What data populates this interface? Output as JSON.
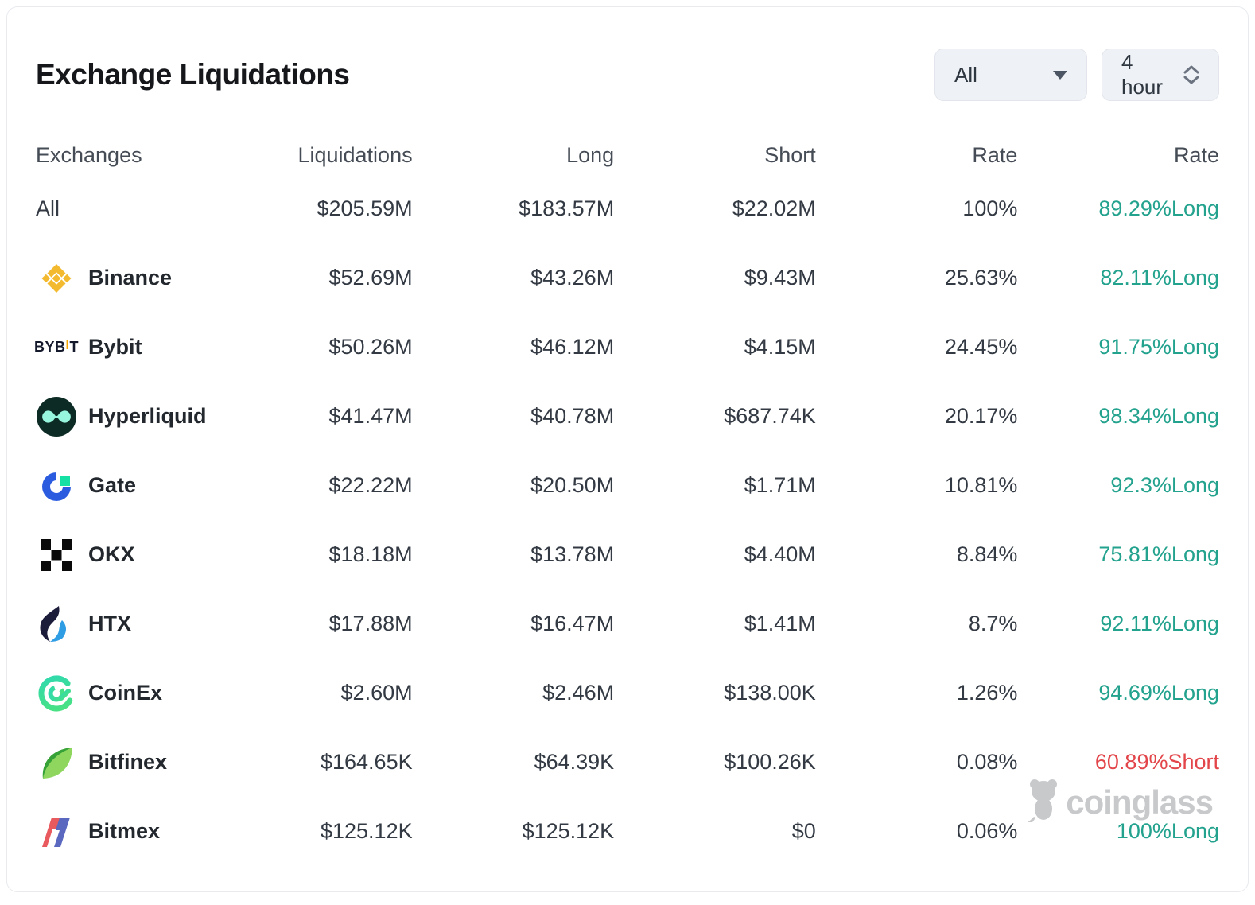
{
  "card": {
    "title": "Exchange Liquidations",
    "filters": {
      "exchange_selected": "All",
      "interval_selected": "4 hour"
    }
  },
  "table": {
    "columns": [
      "Exchanges",
      "Liquidations",
      "Long",
      "Short",
      "Rate",
      "Rate"
    ],
    "rows": [
      {
        "exchange": "All",
        "icon": "",
        "liquidations": "$205.59M",
        "long": "$183.57M",
        "short": "$22.02M",
        "rate": "100%",
        "side_rate": "89.29%Long",
        "side": "long"
      },
      {
        "exchange": "Binance",
        "icon": "binance-icon",
        "liquidations": "$52.69M",
        "long": "$43.26M",
        "short": "$9.43M",
        "rate": "25.63%",
        "side_rate": "82.11%Long",
        "side": "long"
      },
      {
        "exchange": "Bybit",
        "icon": "bybit-icon",
        "liquidations": "$50.26M",
        "long": "$46.12M",
        "short": "$4.15M",
        "rate": "24.45%",
        "side_rate": "91.75%Long",
        "side": "long"
      },
      {
        "exchange": "Hyperliquid",
        "icon": "hyperliquid-icon",
        "liquidations": "$41.47M",
        "long": "$40.78M",
        "short": "$687.74K",
        "rate": "20.17%",
        "side_rate": "98.34%Long",
        "side": "long"
      },
      {
        "exchange": "Gate",
        "icon": "gate-icon",
        "liquidations": "$22.22M",
        "long": "$20.50M",
        "short": "$1.71M",
        "rate": "10.81%",
        "side_rate": "92.3%Long",
        "side": "long"
      },
      {
        "exchange": "OKX",
        "icon": "okx-icon",
        "liquidations": "$18.18M",
        "long": "$13.78M",
        "short": "$4.40M",
        "rate": "8.84%",
        "side_rate": "75.81%Long",
        "side": "long"
      },
      {
        "exchange": "HTX",
        "icon": "htx-icon",
        "liquidations": "$17.88M",
        "long": "$16.47M",
        "short": "$1.41M",
        "rate": "8.7%",
        "side_rate": "92.11%Long",
        "side": "long"
      },
      {
        "exchange": "CoinEx",
        "icon": "coinex-icon",
        "liquidations": "$2.60M",
        "long": "$2.46M",
        "short": "$138.00K",
        "rate": "1.26%",
        "side_rate": "94.69%Long",
        "side": "long"
      },
      {
        "exchange": "Bitfinex",
        "icon": "bitfinex-icon",
        "liquidations": "$164.65K",
        "long": "$64.39K",
        "short": "$100.26K",
        "rate": "0.08%",
        "side_rate": "60.89%Short",
        "side": "short"
      },
      {
        "exchange": "Bitmex",
        "icon": "bitmex-icon",
        "liquidations": "$125.12K",
        "long": "$125.12K",
        "short": "$0",
        "rate": "0.06%",
        "side_rate": "100%Long",
        "side": "long"
      }
    ]
  },
  "watermark": {
    "text": "coinglass"
  },
  "colors": {
    "long": "#23a28e",
    "short": "#e2464a",
    "accent_yellow": "#f3ba2f"
  }
}
